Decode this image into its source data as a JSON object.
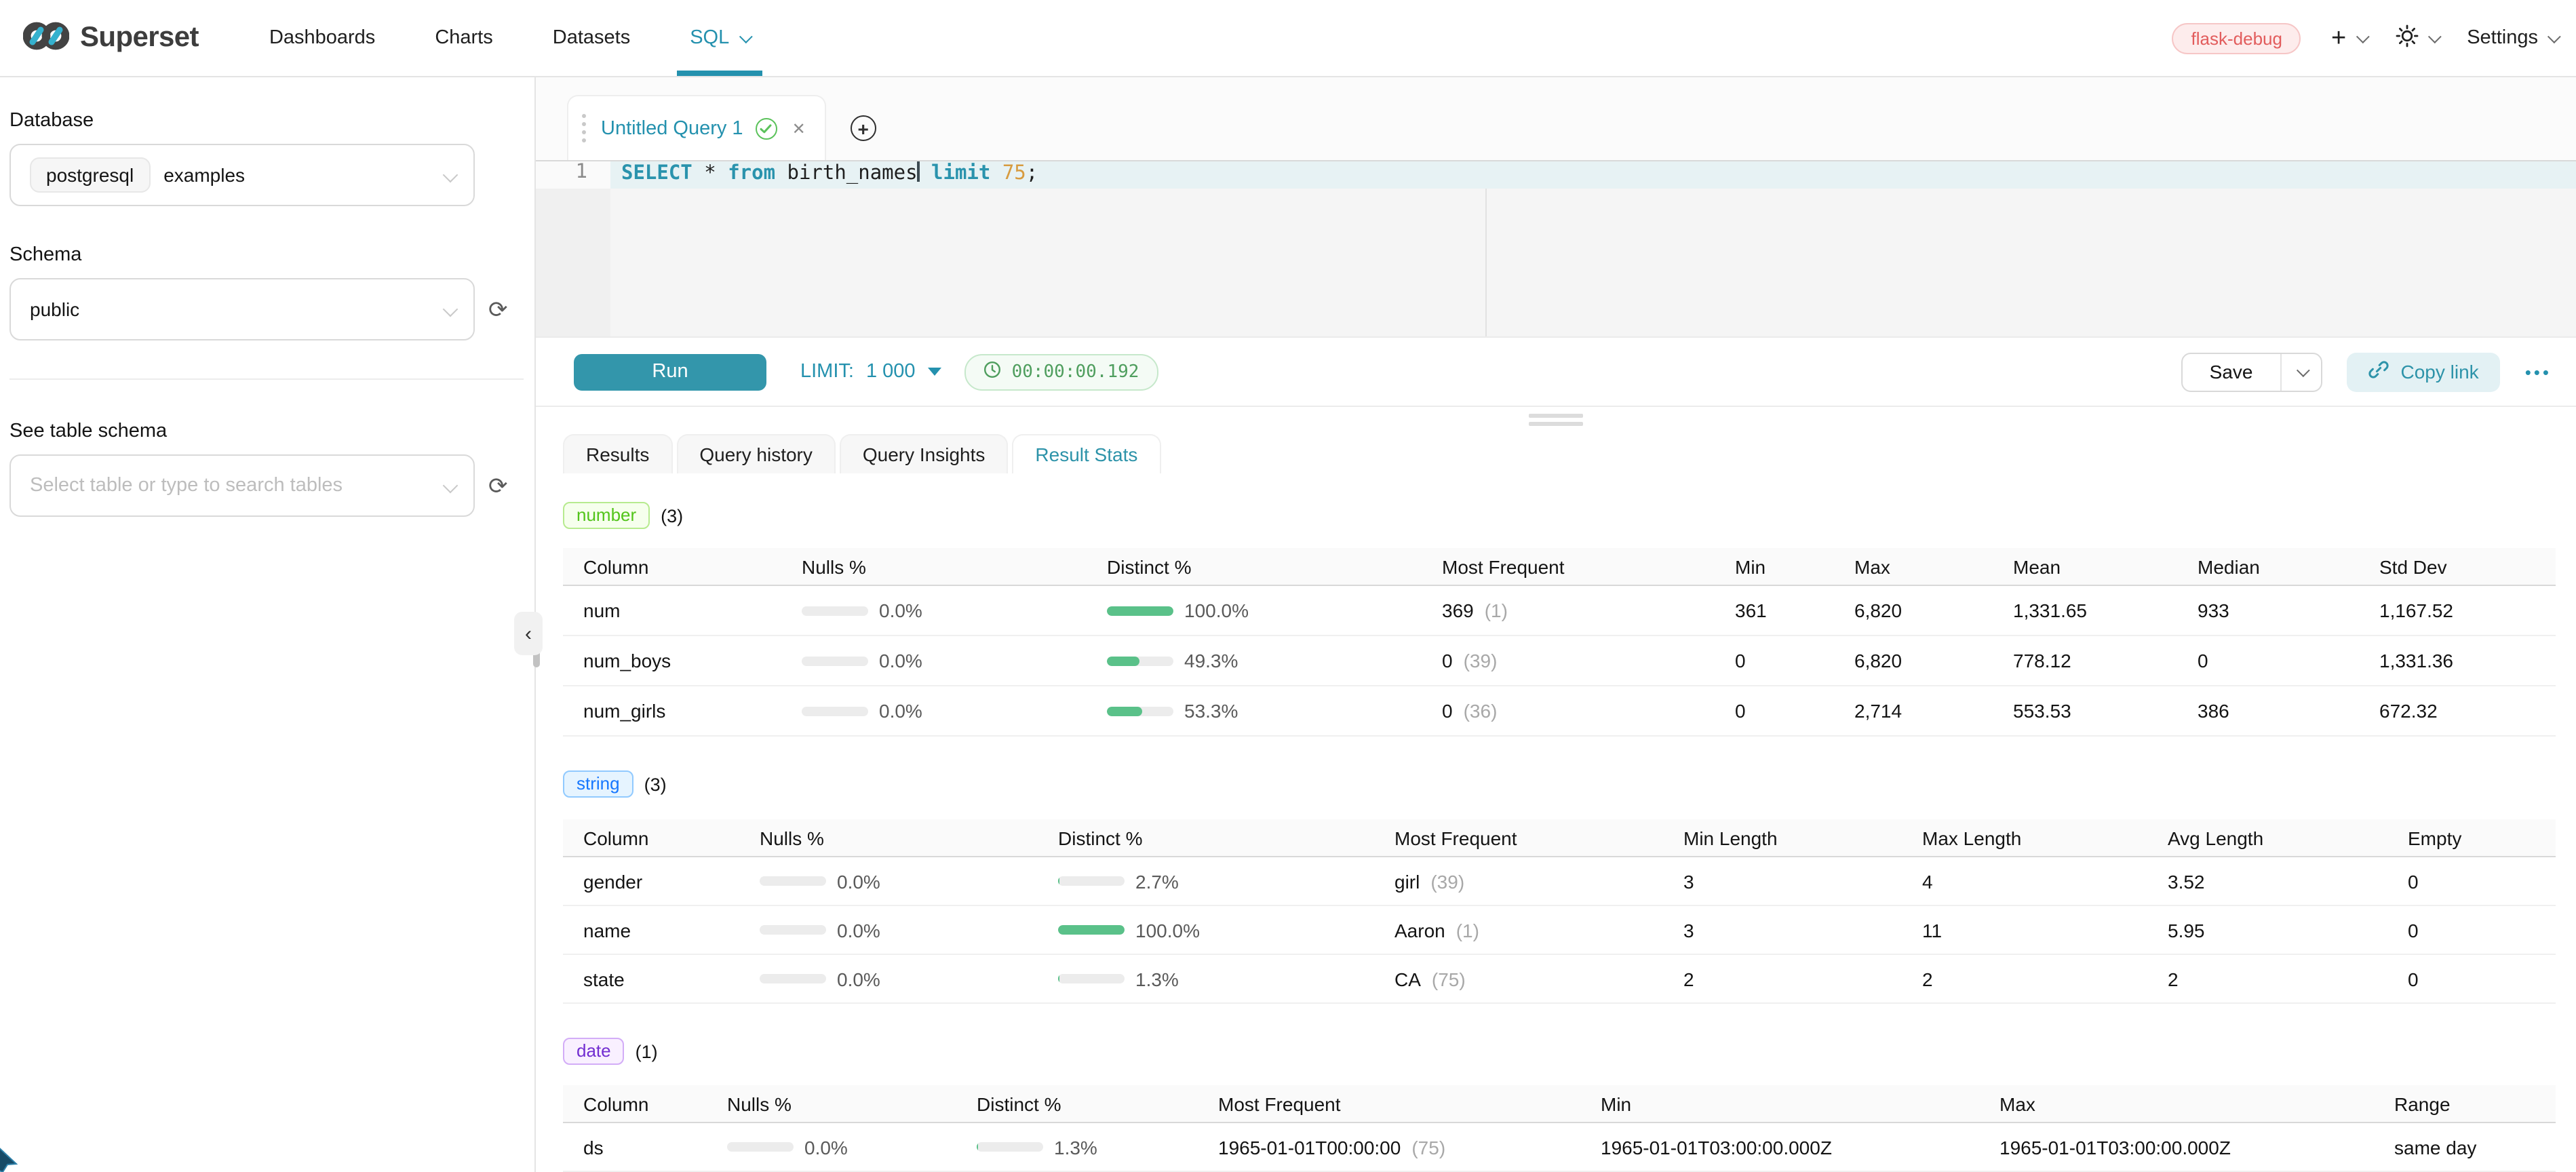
{
  "nav": {
    "logo_text": "Superset",
    "items": [
      {
        "label": "Dashboards",
        "active": false,
        "caret": false
      },
      {
        "label": "Charts",
        "active": false,
        "caret": false
      },
      {
        "label": "Datasets",
        "active": false,
        "caret": false
      },
      {
        "label": "SQL",
        "active": true,
        "caret": true
      }
    ],
    "env_badge": "flask-debug",
    "settings_label": "Settings"
  },
  "sidebar": {
    "database_label": "Database",
    "database_tag": "postgresql",
    "database_value": "examples",
    "schema_label": "Schema",
    "schema_value": "public",
    "table_label": "See table schema",
    "table_placeholder": "Select table or type to search tables"
  },
  "editor": {
    "tab_title": "Untitled Query 1",
    "line_number": "1",
    "sql_tokens": [
      {
        "text": "SELECT",
        "type": "kw"
      },
      {
        "text": " ",
        "type": "plain"
      },
      {
        "text": "*",
        "type": "plain"
      },
      {
        "text": " ",
        "type": "plain"
      },
      {
        "text": "from",
        "type": "kw"
      },
      {
        "text": " birth_names",
        "type": "plain",
        "cursor": true
      },
      {
        "text": " ",
        "type": "plain"
      },
      {
        "text": "limit",
        "type": "kw"
      },
      {
        "text": " ",
        "type": "plain"
      },
      {
        "text": "75",
        "type": "num"
      },
      {
        "text": ";",
        "type": "plain"
      }
    ]
  },
  "toolbar": {
    "run_label": "Run",
    "limit_label": "LIMIT:",
    "limit_value": "1 000",
    "timer": "00:00:00.192",
    "save_label": "Save",
    "copy_link_label": "Copy link",
    "more_label": "•••"
  },
  "results": {
    "tabs": [
      {
        "label": "Results",
        "active": false
      },
      {
        "label": "Query history",
        "active": false
      },
      {
        "label": "Query Insights",
        "active": false
      },
      {
        "label": "Result Stats",
        "active": true
      }
    ]
  },
  "stats": {
    "sections": [
      {
        "badge": "number",
        "count": "(3)",
        "headers": [
          "Column",
          "Nulls %",
          "Distinct %",
          "Most Frequent",
          "Min",
          "Max",
          "Mean",
          "Median",
          "Std Dev"
        ],
        "rows": [
          {
            "column": "num",
            "nulls_pct": "0.0%",
            "nulls_fill": 0,
            "distinct_pct": "100.0%",
            "distinct_fill": 100,
            "mf_value": "369",
            "mf_count": "(1)",
            "values": [
              "361",
              "6,820",
              "1,331.65",
              "933",
              "1,167.52"
            ]
          },
          {
            "column": "num_boys",
            "nulls_pct": "0.0%",
            "nulls_fill": 0,
            "distinct_pct": "49.3%",
            "distinct_fill": 49.3,
            "mf_value": "0",
            "mf_count": "(39)",
            "values": [
              "0",
              "6,820",
              "778.12",
              "0",
              "1,331.36"
            ]
          },
          {
            "column": "num_girls",
            "nulls_pct": "0.0%",
            "nulls_fill": 0,
            "distinct_pct": "53.3%",
            "distinct_fill": 53.3,
            "mf_value": "0",
            "mf_count": "(36)",
            "values": [
              "0",
              "2,714",
              "553.53",
              "386",
              "672.32"
            ]
          }
        ]
      },
      {
        "badge": "string",
        "count": "(3)",
        "headers": [
          "Column",
          "Nulls %",
          "Distinct %",
          "Most Frequent",
          "Min Length",
          "Max Length",
          "Avg Length",
          "Empty"
        ],
        "rows": [
          {
            "column": "gender",
            "nulls_pct": "0.0%",
            "nulls_fill": 0,
            "distinct_pct": "2.7%",
            "distinct_fill": 2.7,
            "mf_value": "girl",
            "mf_count": "(39)",
            "values": [
              "3",
              "4",
              "3.52",
              "0"
            ]
          },
          {
            "column": "name",
            "nulls_pct": "0.0%",
            "nulls_fill": 0,
            "distinct_pct": "100.0%",
            "distinct_fill": 100,
            "mf_value": "Aaron",
            "mf_count": "(1)",
            "values": [
              "3",
              "11",
              "5.95",
              "0"
            ]
          },
          {
            "column": "state",
            "nulls_pct": "0.0%",
            "nulls_fill": 0,
            "distinct_pct": "1.3%",
            "distinct_fill": 1.3,
            "mf_value": "CA",
            "mf_count": "(75)",
            "values": [
              "2",
              "2",
              "2",
              "0"
            ]
          }
        ]
      },
      {
        "badge": "date",
        "count": "(1)",
        "headers": [
          "Column",
          "Nulls %",
          "Distinct %",
          "Most Frequent",
          "Min",
          "Max",
          "Range"
        ],
        "rows": [
          {
            "column": "ds",
            "nulls_pct": "0.0%",
            "nulls_fill": 0,
            "distinct_pct": "1.3%",
            "distinct_fill": 1.3,
            "mf_value": "1965-01-01T00:00:00",
            "mf_count": "(75)",
            "values": [
              "1965-01-01T03:00:00.000Z",
              "1965-01-01T03:00:00.000Z",
              "same day"
            ]
          }
        ]
      }
    ]
  }
}
